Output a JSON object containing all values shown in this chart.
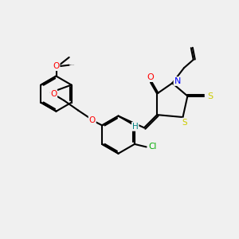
{
  "bg_color": "#f0f0f0",
  "bond_color": "#000000",
  "atom_colors": {
    "O": "#ff0000",
    "N": "#0000ff",
    "S": "#cccc00",
    "Cl": "#00aa00",
    "H": "#008080",
    "C": "#000000"
  },
  "figsize": [
    3.0,
    3.0
  ],
  "dpi": 100
}
